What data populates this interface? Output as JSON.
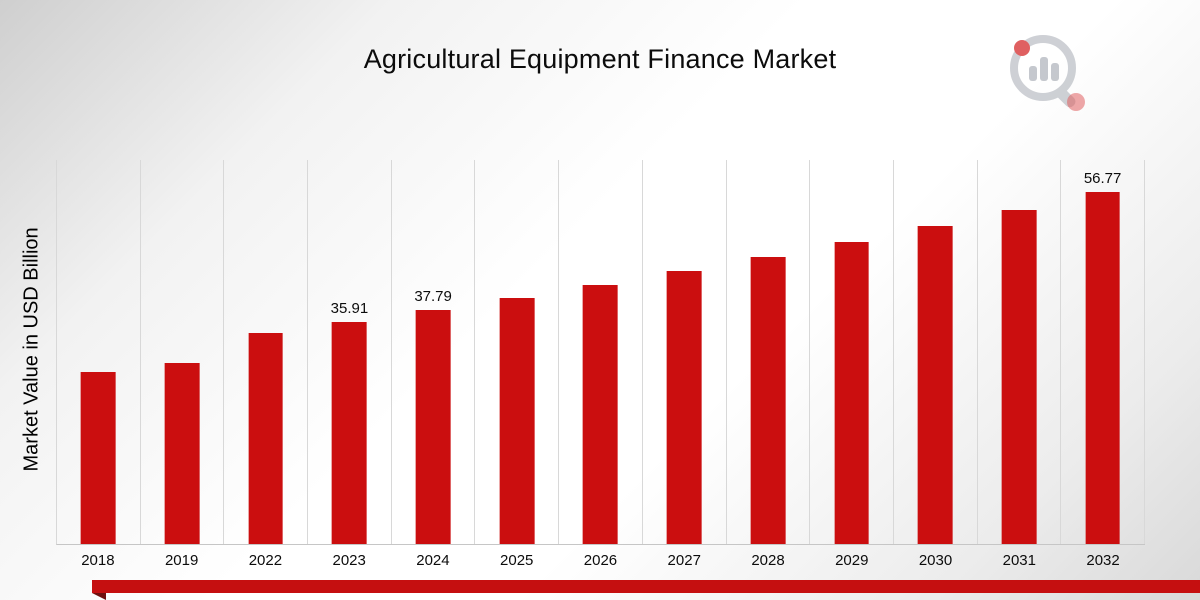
{
  "page": {
    "title": "Agricultural Equipment Finance Market"
  },
  "logo": {
    "name": "market-research-magnifier-logo"
  },
  "colors": {
    "bar": "#cb0e0f",
    "ribbon": "#c50f10",
    "ribbon_shadow": "#6f100f",
    "gridline": "#d8d8d8"
  },
  "chart_data": {
    "type": "bar",
    "title": "Agricultural Equipment Finance Market",
    "xlabel": "",
    "ylabel": "Market Value in USD Billion",
    "categories": [
      "2018",
      "2019",
      "2022",
      "2023",
      "2024",
      "2025",
      "2026",
      "2027",
      "2028",
      "2029",
      "2030",
      "2031",
      "2032"
    ],
    "values": [
      27.8,
      29.3,
      34.1,
      35.91,
      37.79,
      39.8,
      41.8,
      44.0,
      46.3,
      48.7,
      51.3,
      53.9,
      56.77
    ],
    "data_labels": {
      "2023": "35.91",
      "2024": "37.79",
      "2032": "56.77"
    },
    "ylim": [
      0,
      62
    ],
    "grid": "vertical-only",
    "legend": "none",
    "bar_color": "#cb0e0f"
  }
}
